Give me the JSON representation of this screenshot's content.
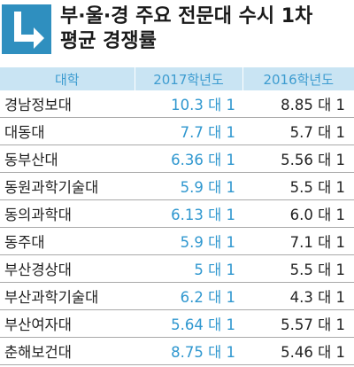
{
  "title": {
    "line1": "부·울·경 주요 전문대 수시 1차",
    "line2": "평균 경쟁률"
  },
  "icon": "arrow-down-right-icon",
  "colors": {
    "accent": "#2f8fbf",
    "header_bg": "#c9e4f3",
    "value_blue": "#2f97cf"
  },
  "table": {
    "headers": [
      "대학",
      "2017학년도",
      "2016학년도"
    ],
    "rows": [
      {
        "name": "경남정보대",
        "y2017": "10.3 대 1",
        "y2016": "8.85 대 1"
      },
      {
        "name": "대동대",
        "y2017": "7.7 대 1",
        "y2016": "5.7 대 1"
      },
      {
        "name": "동부산대",
        "y2017": "6.36 대 1",
        "y2016": "5.56 대 1"
      },
      {
        "name": "동원과학기술대",
        "y2017": "5.9 대 1",
        "y2016": "5.5 대 1"
      },
      {
        "name": "동의과학대",
        "y2017": "6.13 대 1",
        "y2016": "6.0 대 1"
      },
      {
        "name": "동주대",
        "y2017": "5.9 대 1",
        "y2016": "7.1 대 1"
      },
      {
        "name": "부산경상대",
        "y2017": "5 대 1",
        "y2016": "5.5 대 1"
      },
      {
        "name": "부산과학기술대",
        "y2017": "6.2 대 1",
        "y2016": "4.3 대 1"
      },
      {
        "name": "부산여자대",
        "y2017": "5.64 대 1",
        "y2016": "5.57 대 1"
      },
      {
        "name": "춘해보건대",
        "y2017": "8.75 대 1",
        "y2016": "5.46 대 1"
      }
    ]
  }
}
